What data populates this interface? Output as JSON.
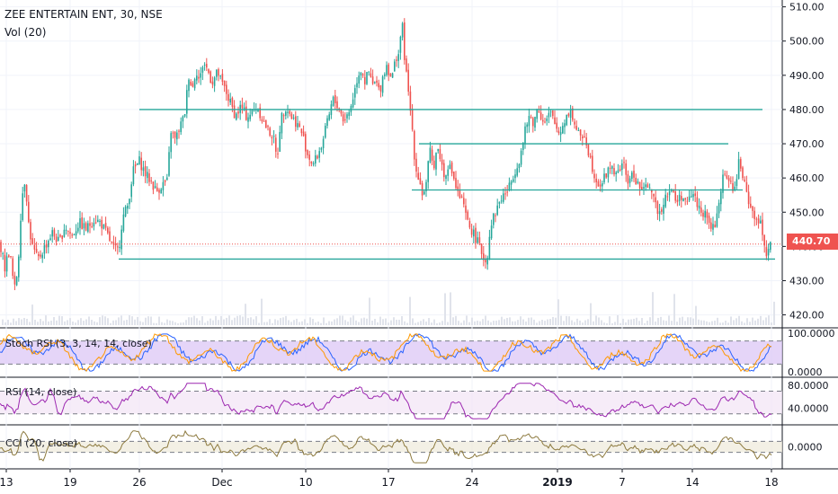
{
  "chart_data": {
    "type": "candlestick",
    "title": "ZEE ENTERTAIN ENT, 30, NSE",
    "volume_label": "Vol (20)",
    "last_price": "440.70",
    "price_axis": {
      "ticks": [
        "510.00",
        "500.00",
        "490.00",
        "480.00",
        "470.00",
        "460.00",
        "450.00",
        "440.00",
        "430.00",
        "420.00"
      ],
      "ylim": [
        417,
        512
      ]
    },
    "time_axis": [
      "13",
      "19",
      "26",
      "Dec",
      "10",
      "17",
      "24",
      "2019",
      "7",
      "14",
      "18"
    ],
    "price_path": [
      [
        0,
        441
      ],
      [
        3,
        437
      ],
      [
        6,
        433
      ],
      [
        9,
        439
      ],
      [
        12,
        436
      ],
      [
        16,
        427
      ],
      [
        20,
        434
      ],
      [
        24,
        454
      ],
      [
        28,
        460
      ],
      [
        32,
        446
      ],
      [
        36,
        440
      ],
      [
        42,
        436
      ],
      [
        50,
        440
      ],
      [
        58,
        444
      ],
      [
        66,
        441
      ],
      [
        72,
        446
      ],
      [
        80,
        443
      ],
      [
        88,
        447
      ],
      [
        96,
        445
      ],
      [
        104,
        448
      ],
      [
        112,
        447
      ],
      [
        120,
        443
      ],
      [
        127,
        439
      ],
      [
        132,
        439
      ],
      [
        136,
        448
      ],
      [
        142,
        452
      ],
      [
        148,
        462
      ],
      [
        155,
        465
      ],
      [
        162,
        461
      ],
      [
        168,
        459
      ],
      [
        174,
        456
      ],
      [
        180,
        458
      ],
      [
        186,
        459
      ],
      [
        190,
        474
      ],
      [
        195,
        471
      ],
      [
        200,
        475
      ],
      [
        205,
        478
      ],
      [
        210,
        490
      ],
      [
        214,
        486
      ],
      [
        218,
        492
      ],
      [
        222,
        488
      ],
      [
        226,
        494
      ],
      [
        230,
        492
      ],
      [
        236,
        488
      ],
      [
        242,
        491
      ],
      [
        246,
        488
      ],
      [
        250,
        486
      ],
      [
        256,
        482
      ],
      [
        262,
        478
      ],
      [
        268,
        481
      ],
      [
        274,
        478
      ],
      [
        280,
        479
      ],
      [
        286,
        481
      ],
      [
        292,
        477
      ],
      [
        298,
        474
      ],
      [
        304,
        472
      ],
      [
        308,
        465
      ],
      [
        312,
        477
      ],
      [
        318,
        481
      ],
      [
        324,
        478
      ],
      [
        330,
        476
      ],
      [
        336,
        473
      ],
      [
        342,
        467
      ],
      [
        348,
        464
      ],
      [
        354,
        467
      ],
      [
        358,
        470
      ],
      [
        362,
        474
      ],
      [
        366,
        478
      ],
      [
        370,
        483
      ],
      [
        376,
        481
      ],
      [
        382,
        477
      ],
      [
        388,
        479
      ],
      [
        394,
        485
      ],
      [
        398,
        490
      ],
      [
        402,
        492
      ],
      [
        406,
        488
      ],
      [
        410,
        491
      ],
      [
        414,
        487
      ],
      [
        418,
        488
      ],
      [
        422,
        485
      ],
      [
        426,
        490
      ],
      [
        430,
        493
      ],
      [
        436,
        489
      ],
      [
        440,
        495
      ],
      [
        444,
        497
      ],
      [
        447,
        506
      ],
      [
        450,
        495
      ],
      [
        454,
        485
      ],
      [
        458,
        476
      ],
      [
        462,
        463
      ],
      [
        466,
        460
      ],
      [
        470,
        455
      ],
      [
        474,
        458
      ],
      [
        478,
        468
      ],
      [
        482,
        463
      ],
      [
        486,
        469
      ],
      [
        490,
        466
      ],
      [
        494,
        460
      ],
      [
        498,
        464
      ],
      [
        504,
        461
      ],
      [
        508,
        456
      ],
      [
        514,
        453
      ],
      [
        520,
        447
      ],
      [
        526,
        444
      ],
      [
        530,
        442
      ],
      [
        536,
        438
      ],
      [
        541,
        435
      ],
      [
        546,
        447
      ],
      [
        550,
        449
      ],
      [
        555,
        453
      ],
      [
        560,
        455
      ],
      [
        566,
        457
      ],
      [
        572,
        462
      ],
      [
        576,
        464
      ],
      [
        580,
        468
      ],
      [
        585,
        475
      ],
      [
        589,
        478
      ],
      [
        594,
        476
      ],
      [
        598,
        481
      ],
      [
        602,
        478
      ],
      [
        606,
        476
      ],
      [
        612,
        479
      ],
      [
        618,
        475
      ],
      [
        622,
        473
      ],
      [
        628,
        477
      ],
      [
        634,
        480
      ],
      [
        640,
        475
      ],
      [
        646,
        471
      ],
      [
        650,
        473
      ],
      [
        656,
        466
      ],
      [
        662,
        460
      ],
      [
        668,
        458
      ],
      [
        674,
        461
      ],
      [
        680,
        464
      ],
      [
        686,
        460
      ],
      [
        692,
        465
      ],
      [
        698,
        459
      ],
      [
        704,
        461
      ],
      [
        710,
        458
      ],
      [
        716,
        456
      ],
      [
        722,
        459
      ],
      [
        728,
        452
      ],
      [
        734,
        450
      ],
      [
        740,
        455
      ],
      [
        746,
        457
      ],
      [
        752,
        453
      ],
      [
        758,
        455
      ],
      [
        764,
        452
      ],
      [
        770,
        456
      ],
      [
        776,
        452
      ],
      [
        782,
        450
      ],
      [
        788,
        447
      ],
      [
        794,
        445
      ],
      [
        798,
        449
      ],
      [
        802,
        458
      ],
      [
        806,
        462
      ],
      [
        810,
        459
      ],
      [
        814,
        458
      ],
      [
        818,
        456
      ],
      [
        822,
        466
      ],
      [
        826,
        460
      ],
      [
        830,
        456
      ],
      [
        834,
        452
      ],
      [
        838,
        450
      ],
      [
        842,
        446
      ],
      [
        846,
        448
      ],
      [
        850,
        441
      ],
      [
        853,
        437
      ],
      [
        856,
        441
      ],
      [
        858,
        440
      ]
    ],
    "levels": [
      {
        "x1": 155,
        "x2": 848,
        "price": 480.0
      },
      {
        "x1": 466,
        "x2": 810,
        "price": 470.0
      },
      {
        "x1": 458,
        "x2": 826,
        "price": 456.5
      },
      {
        "x1": 132,
        "x2": 862,
        "price": 436.3
      }
    ],
    "last_price_value": 440.7,
    "indicators": [
      {
        "name": "Stoch RSI (3, 3, 14, 14, close)",
        "ticks": [
          "100.0000",
          "0.0000"
        ],
        "range": [
          0,
          100
        ],
        "band": [
          20,
          80
        ],
        "band_color": "#dcc7f5",
        "line_colors": [
          "#2962ff",
          "#ff9800"
        ]
      },
      {
        "name": "RSI (14, close)",
        "ticks": [
          "80.0000",
          "40.0000"
        ],
        "range": [
          20,
          85
        ],
        "band": [
          30,
          70
        ],
        "band_color": "#f3e5f5",
        "line_colors": [
          "#9c27b0"
        ]
      },
      {
        "name": "CCI (20, close)",
        "ticks": [
          "0.0000"
        ],
        "range": [
          -300,
          300
        ],
        "band": [
          -100,
          100
        ],
        "band_color": "#efebdc",
        "line_colors": [
          "#8d7a3f"
        ]
      }
    ],
    "colors": {
      "up": "#26a69a",
      "down": "#ef5350",
      "level": "#26a69a",
      "last_line": "#ef5350",
      "grid": "#f0f3fa",
      "axis_text": "#131722"
    }
  }
}
